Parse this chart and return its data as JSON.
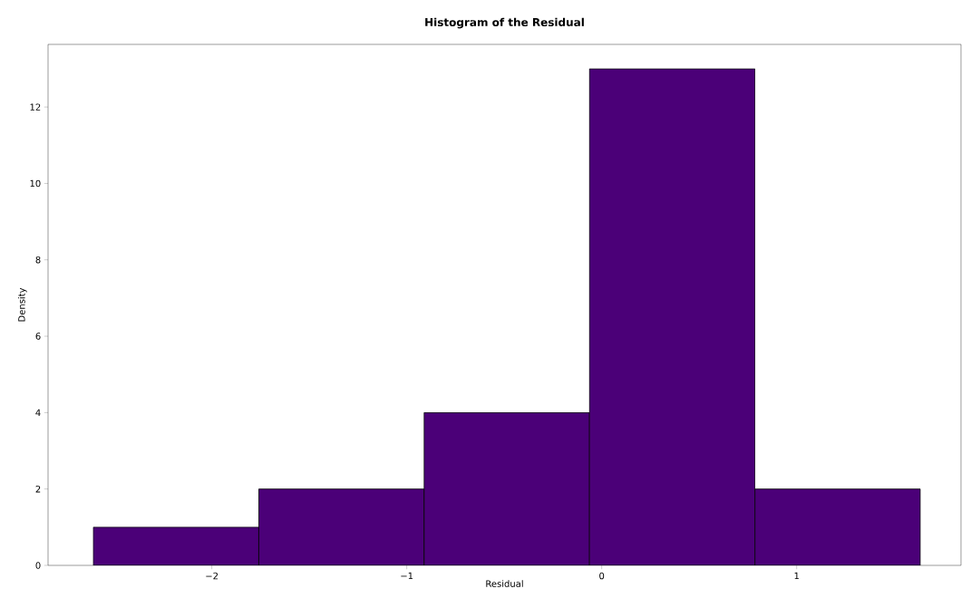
{
  "chart_data": {
    "type": "histogram",
    "title": "**Histogram of the Residual**",
    "xlabel": "Residual",
    "ylabel": "Density",
    "bins": [
      -2.608,
      -1.759,
      -0.911,
      -0.063,
      0.786,
      1.634
    ],
    "values": [
      1,
      2,
      4,
      13,
      2
    ],
    "color": "#4b0078",
    "xlim": [
      -2.84,
      1.843
    ],
    "ylim": [
      0,
      13.64
    ],
    "xticks": [
      {
        "value": -2,
        "label": "−2"
      },
      {
        "value": -1,
        "label": "−1"
      },
      0,
      1
    ],
    "yticks": [
      0,
      2,
      4,
      6,
      8,
      10,
      12
    ],
    "grid": false
  }
}
